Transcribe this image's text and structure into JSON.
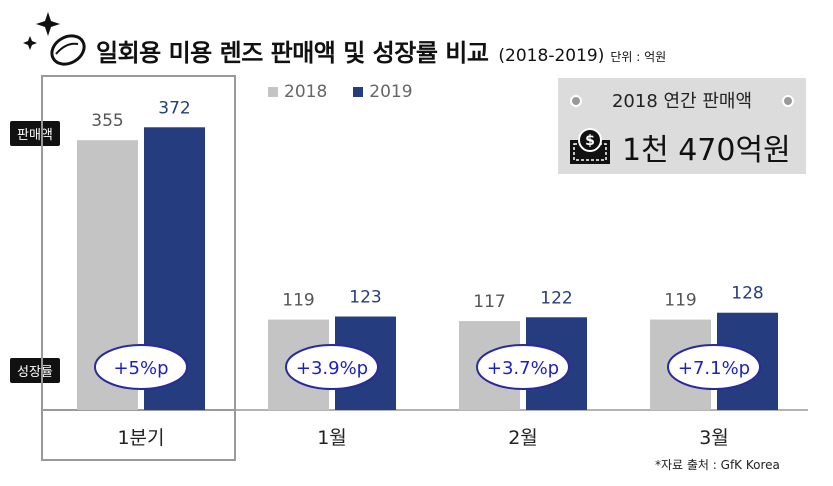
{
  "title": {
    "main": "일회용 미용 렌즈 판매액 및 성장률 비교",
    "period": "(2018-2019)",
    "unit": "단위 : 억원"
  },
  "annual_box": {
    "label": "2018 연간 판매액",
    "value": "1천 470억원"
  },
  "side_labels": {
    "sales": "판매액",
    "growth": "성장률"
  },
  "source": "*자료 출처 : GfK Korea",
  "colors": {
    "2018": "#c4c4c4",
    "2019": "#253d7e",
    "growth_text": "#1c1fc4",
    "highlight_border": "#999999"
  },
  "chart_data": {
    "type": "bar",
    "categories": [
      "1분기",
      "1월",
      "2월",
      "3월"
    ],
    "series": [
      {
        "name": "2018",
        "values": [
          355,
          119,
          117,
          119
        ]
      },
      {
        "name": "2019",
        "values": [
          372,
          123,
          122,
          128
        ]
      }
    ],
    "growth_labels": [
      "+5%p",
      "+3.9%p",
      "+3.7%p",
      "+7.1%p"
    ],
    "highlighted_category": "1분기",
    "legend_position": "top-left",
    "grid": false
  }
}
